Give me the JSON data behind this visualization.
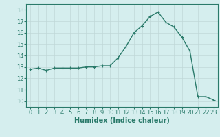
{
  "x": [
    0,
    1,
    2,
    3,
    4,
    5,
    6,
    7,
    8,
    9,
    10,
    11,
    12,
    13,
    14,
    15,
    16,
    17,
    18,
    19,
    20,
    21,
    22,
    23
  ],
  "y": [
    12.8,
    12.9,
    12.7,
    12.9,
    12.9,
    12.9,
    12.9,
    13.0,
    13.0,
    13.1,
    13.1,
    13.8,
    14.8,
    16.0,
    16.6,
    17.4,
    17.8,
    16.9,
    16.5,
    15.6,
    14.4,
    10.4,
    10.4,
    10.1
  ],
  "line_color": "#2a7a6a",
  "marker": "+",
  "marker_size": 3,
  "marker_lw": 0.8,
  "line_width": 1.0,
  "bg_color": "#d5eeee",
  "grid_color": "#c0d8d8",
  "xlabel": "Humidex (Indice chaleur)",
  "xlabel_fontsize": 7,
  "tick_fontsize": 6,
  "xlim": [
    -0.5,
    23.5
  ],
  "ylim": [
    9.5,
    18.5
  ],
  "yticks": [
    10,
    11,
    12,
    13,
    14,
    15,
    16,
    17,
    18
  ],
  "xticks": [
    0,
    1,
    2,
    3,
    4,
    5,
    6,
    7,
    8,
    9,
    10,
    11,
    12,
    13,
    14,
    15,
    16,
    17,
    18,
    19,
    20,
    21,
    22,
    23
  ]
}
